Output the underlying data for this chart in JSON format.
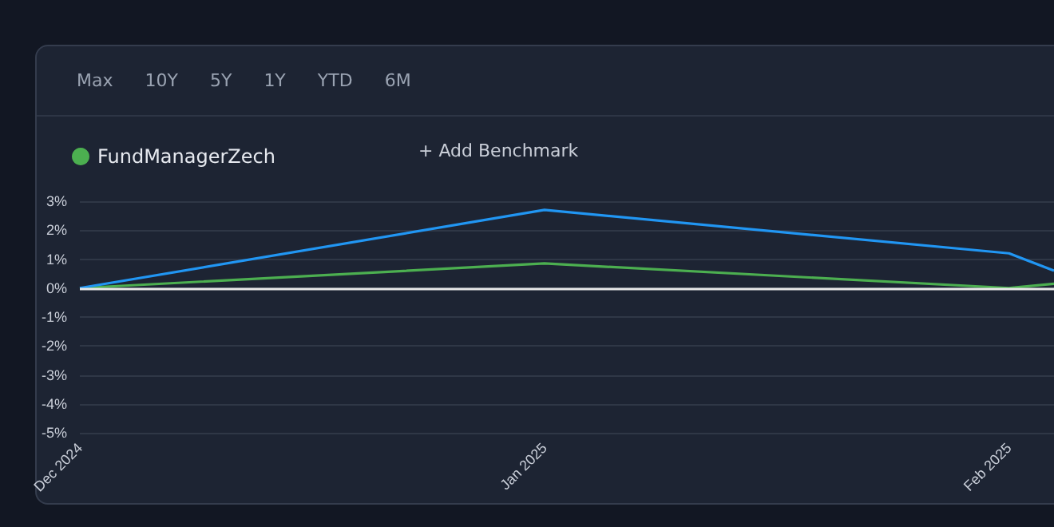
{
  "chart_data": {
    "type": "line",
    "x": [
      "2024-12-01",
      "2025-01-01",
      "2025-02-01",
      "2025-02-04"
    ],
    "series": [
      {
        "name": "FundManagerZech",
        "color": "#4caf50",
        "values": [
          0,
          0.85,
          0,
          0.15
        ]
      },
      {
        "color": "#2196f3",
        "values": [
          0,
          2.7,
          1.2,
          0.6
        ]
      }
    ],
    "xlim": [
      "2024-12-01",
      "2025-02-04"
    ],
    "xticks": [
      {
        "value": "2024-12-01",
        "label": "Dec 2024"
      },
      {
        "value": "2025-01-01",
        "label": "Jan 2025"
      },
      {
        "value": "2025-02-01",
        "label": "Feb 2025"
      }
    ],
    "ylim": [
      -5,
      3
    ],
    "yticks": [
      {
        "value": -5,
        "label": "-5%"
      },
      {
        "value": -4,
        "label": "-4%"
      },
      {
        "value": -3,
        "label": "-3%"
      },
      {
        "value": -2,
        "label": "-2%"
      },
      {
        "value": -1,
        "label": "-1%"
      },
      {
        "value": 0,
        "label": "0%"
      },
      {
        "value": 1,
        "label": "1%"
      },
      {
        "value": 2,
        "label": "2%"
      },
      {
        "value": 3,
        "label": "3%"
      }
    ],
    "ref_lines": [
      {
        "axis": "y",
        "value": 0,
        "color": "#e8e8e8"
      }
    ],
    "annotations": [
      "Max",
      "10Y",
      "5Y",
      "1Y",
      "YTD",
      "6M",
      "+ Add Benchmark"
    ],
    "grid": "y",
    "legend": "top left",
    "marker": "none",
    "line_style": "solid"
  }
}
